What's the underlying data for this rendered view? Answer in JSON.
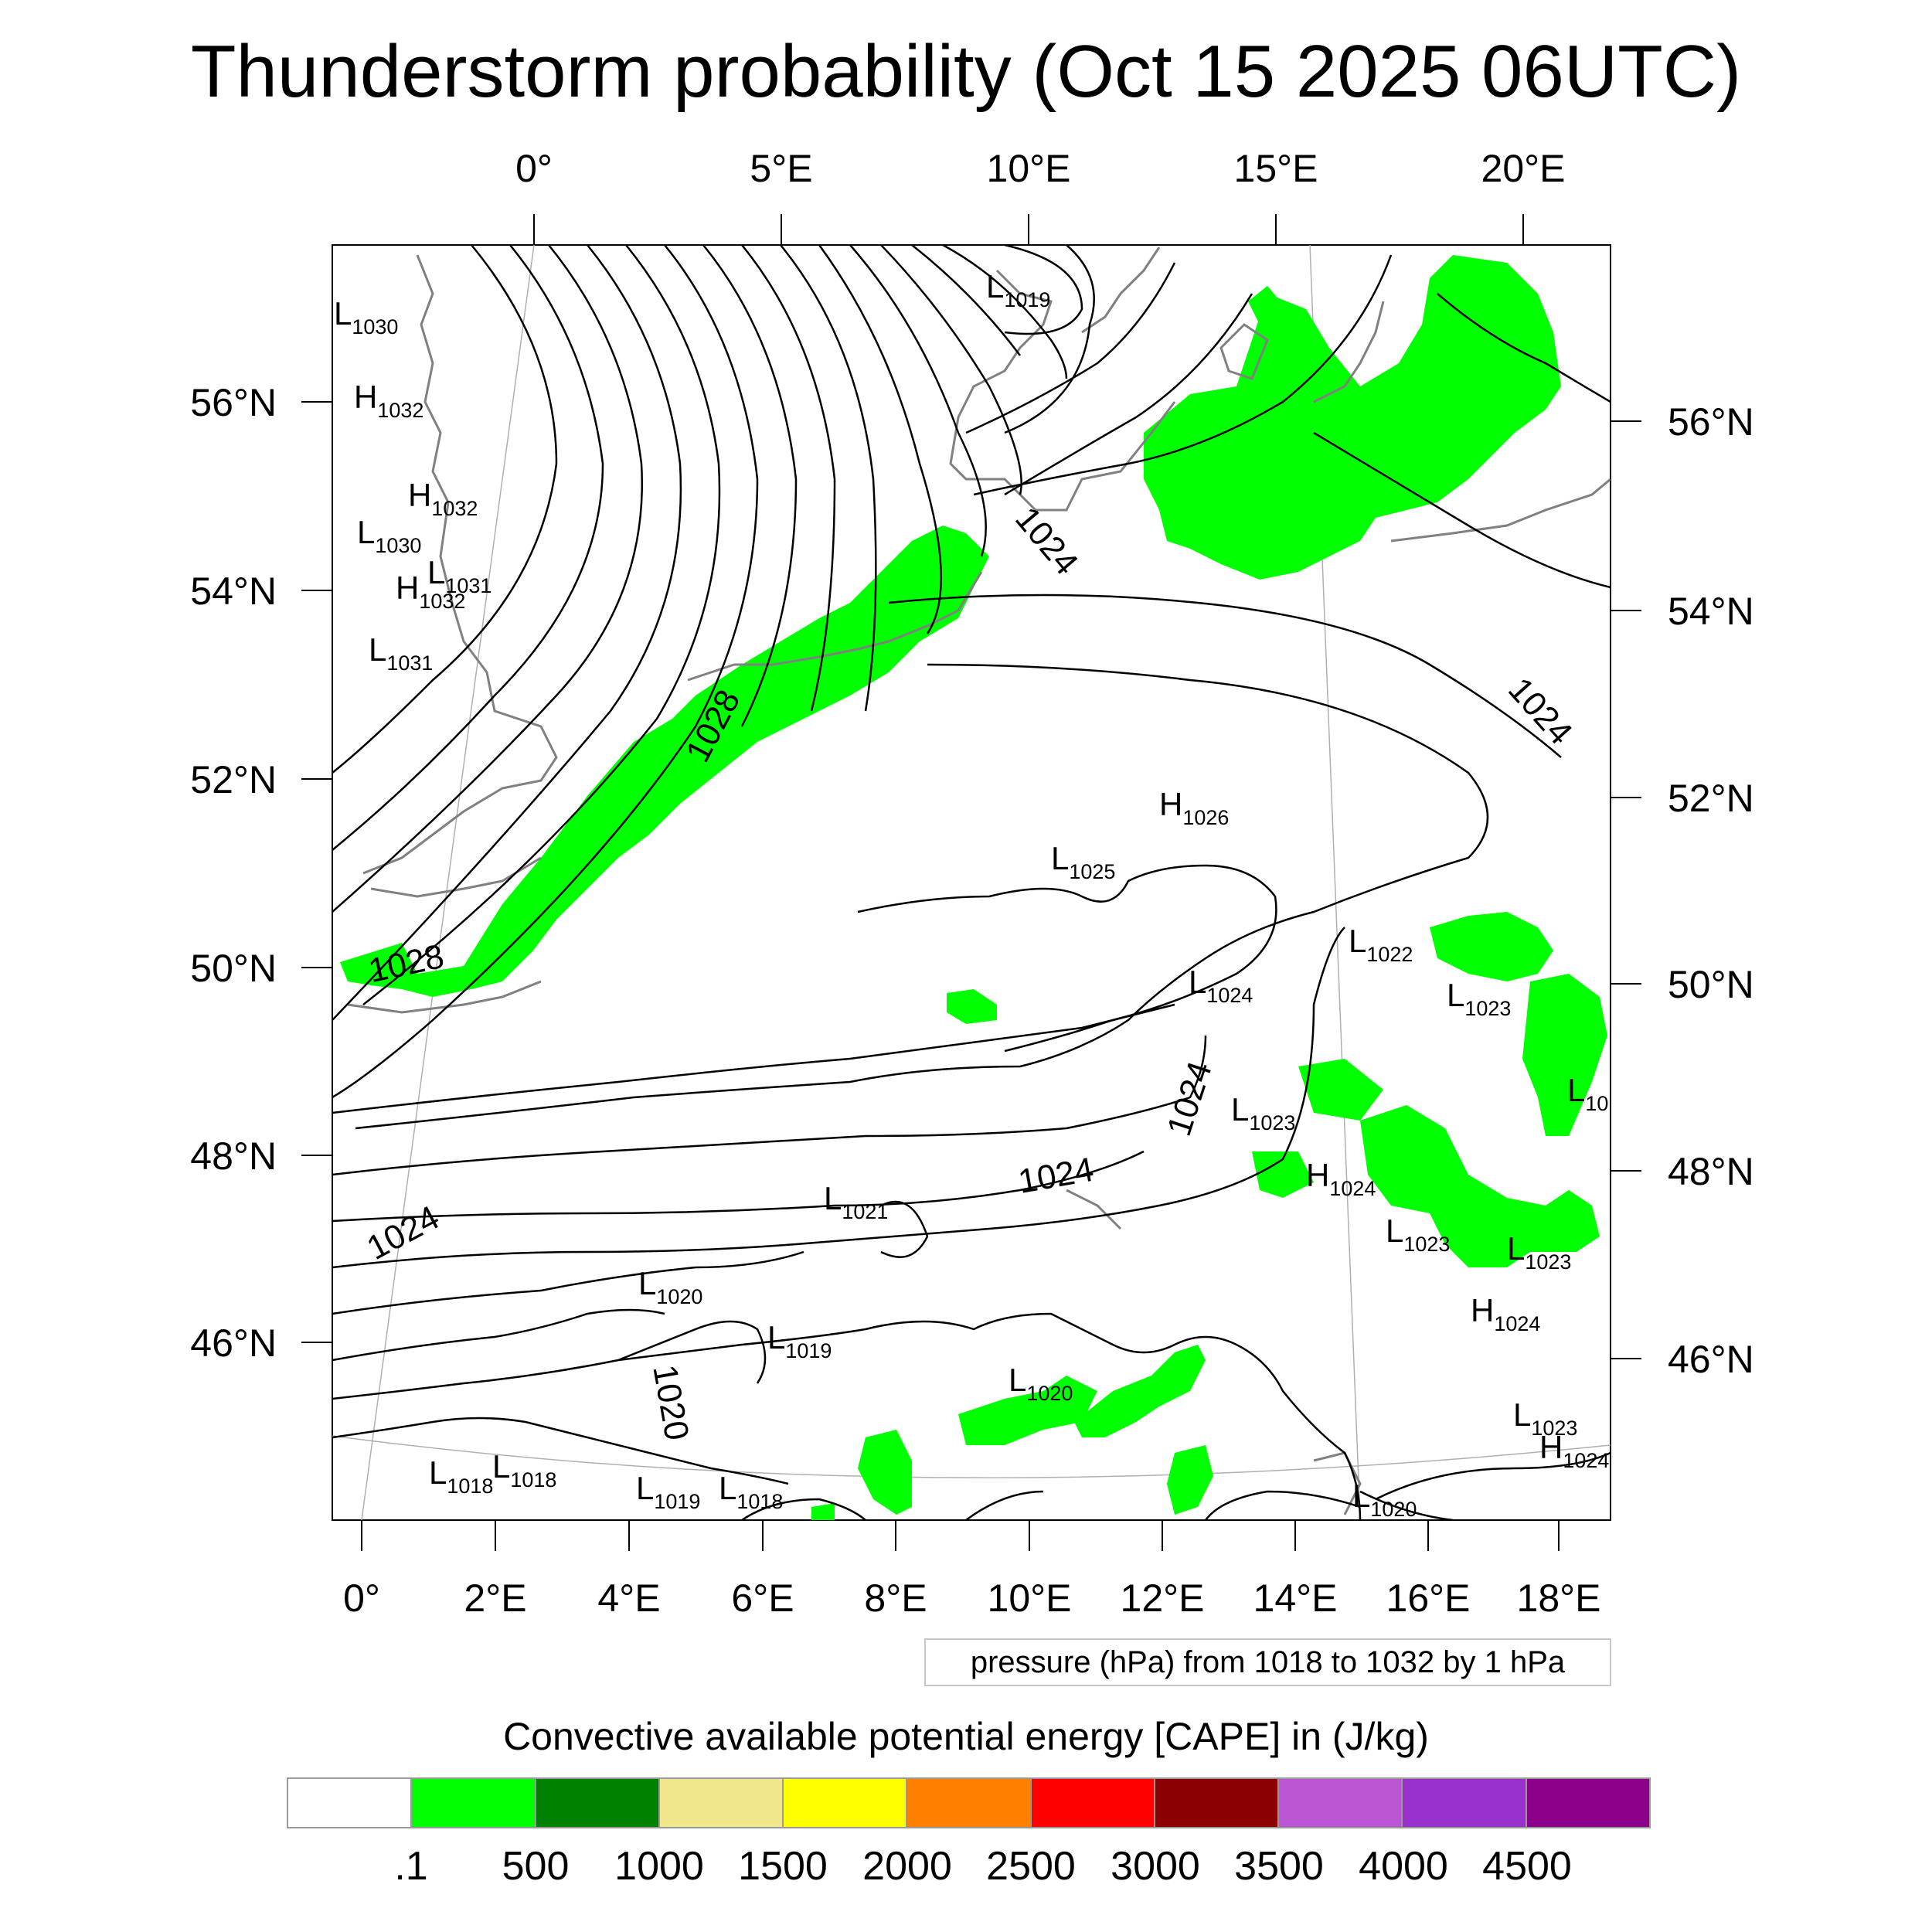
{
  "title": "Thunderstorm probability (Oct 15 2025 06UTC)",
  "top_axis_labels": [
    "0°",
    "5°E",
    "10°E",
    "15°E",
    "20°E"
  ],
  "bottom_axis_labels": [
    "0°",
    "2°E",
    "4°E",
    "6°E",
    "8°E",
    "10°E",
    "12°E",
    "14°E",
    "16°E",
    "18°E"
  ],
  "left_axis_labels": [
    "56°N",
    "54°N",
    "52°N",
    "50°N",
    "48°N",
    "46°N"
  ],
  "right_axis_labels": [
    "56°N",
    "54°N",
    "52°N",
    "50°N",
    "48°N",
    "46°N"
  ],
  "contour_labels": [
    {
      "id": "c1",
      "text": "1028"
    },
    {
      "id": "c2",
      "text": "1028"
    },
    {
      "id": "c3",
      "text": "1024"
    },
    {
      "id": "c4",
      "text": "1024"
    },
    {
      "id": "c5",
      "text": "1024"
    },
    {
      "id": "c6",
      "text": "1024"
    },
    {
      "id": "c7",
      "text": "1024"
    },
    {
      "id": "c8",
      "text": "1020"
    }
  ],
  "pressure_centers": [
    {
      "kind": "L",
      "value": "1030"
    },
    {
      "kind": "H",
      "value": "1032"
    },
    {
      "kind": "H",
      "value": "1032"
    },
    {
      "kind": "L",
      "value": "1030"
    },
    {
      "kind": "L",
      "value": "1031"
    },
    {
      "kind": "H",
      "value": "1032"
    },
    {
      "kind": "L",
      "value": "1031"
    },
    {
      "kind": "L",
      "value": "1019"
    },
    {
      "kind": "H",
      "value": "1026"
    },
    {
      "kind": "L",
      "value": "1025"
    },
    {
      "kind": "L",
      "value": "1022"
    },
    {
      "kind": "L",
      "value": "1024"
    },
    {
      "kind": "L",
      "value": "1023"
    },
    {
      "kind": "L",
      "value": "1023"
    },
    {
      "kind": "H",
      "value": "1024"
    },
    {
      "kind": "L",
      "value": "1021"
    },
    {
      "kind": "L",
      "value": "1020"
    },
    {
      "kind": "L",
      "value": "1019"
    },
    {
      "kind": "L",
      "value": "1020"
    },
    {
      "kind": "L",
      "value": "1023"
    },
    {
      "kind": "L",
      "value": "1023"
    },
    {
      "kind": "H",
      "value": "1024"
    },
    {
      "kind": "L",
      "value": "1023"
    },
    {
      "kind": "H",
      "value": "1024"
    },
    {
      "kind": "L",
      "value": "1018"
    },
    {
      "kind": "L",
      "value": "1018"
    },
    {
      "kind": "L",
      "value": "1019"
    },
    {
      "kind": "L",
      "value": "1018"
    },
    {
      "kind": "L",
      "value": "1020"
    },
    {
      "kind": "L",
      "value": "10"
    }
  ],
  "legend_note": "pressure (hPa) from 1018 to 1032 by 1 hPa",
  "colorbar": {
    "title": "Convective available potential energy [CAPE] in (J/kg)",
    "colors": [
      "#ffffff",
      "#00ff00",
      "#008000",
      "#f0e68c",
      "#ffff00",
      "#ff8000",
      "#ff0000",
      "#8b0000",
      "#ba55d3",
      "#9932cc",
      "#8b008b"
    ],
    "tick_labels": [
      ".1",
      "500",
      "1000",
      "1500",
      "2000",
      "2500",
      "3000",
      "3500",
      "4000",
      "4500"
    ]
  },
  "colors": {
    "cape_fill": "#00ff00",
    "coastline": "#808080",
    "isobar": "#000000"
  }
}
